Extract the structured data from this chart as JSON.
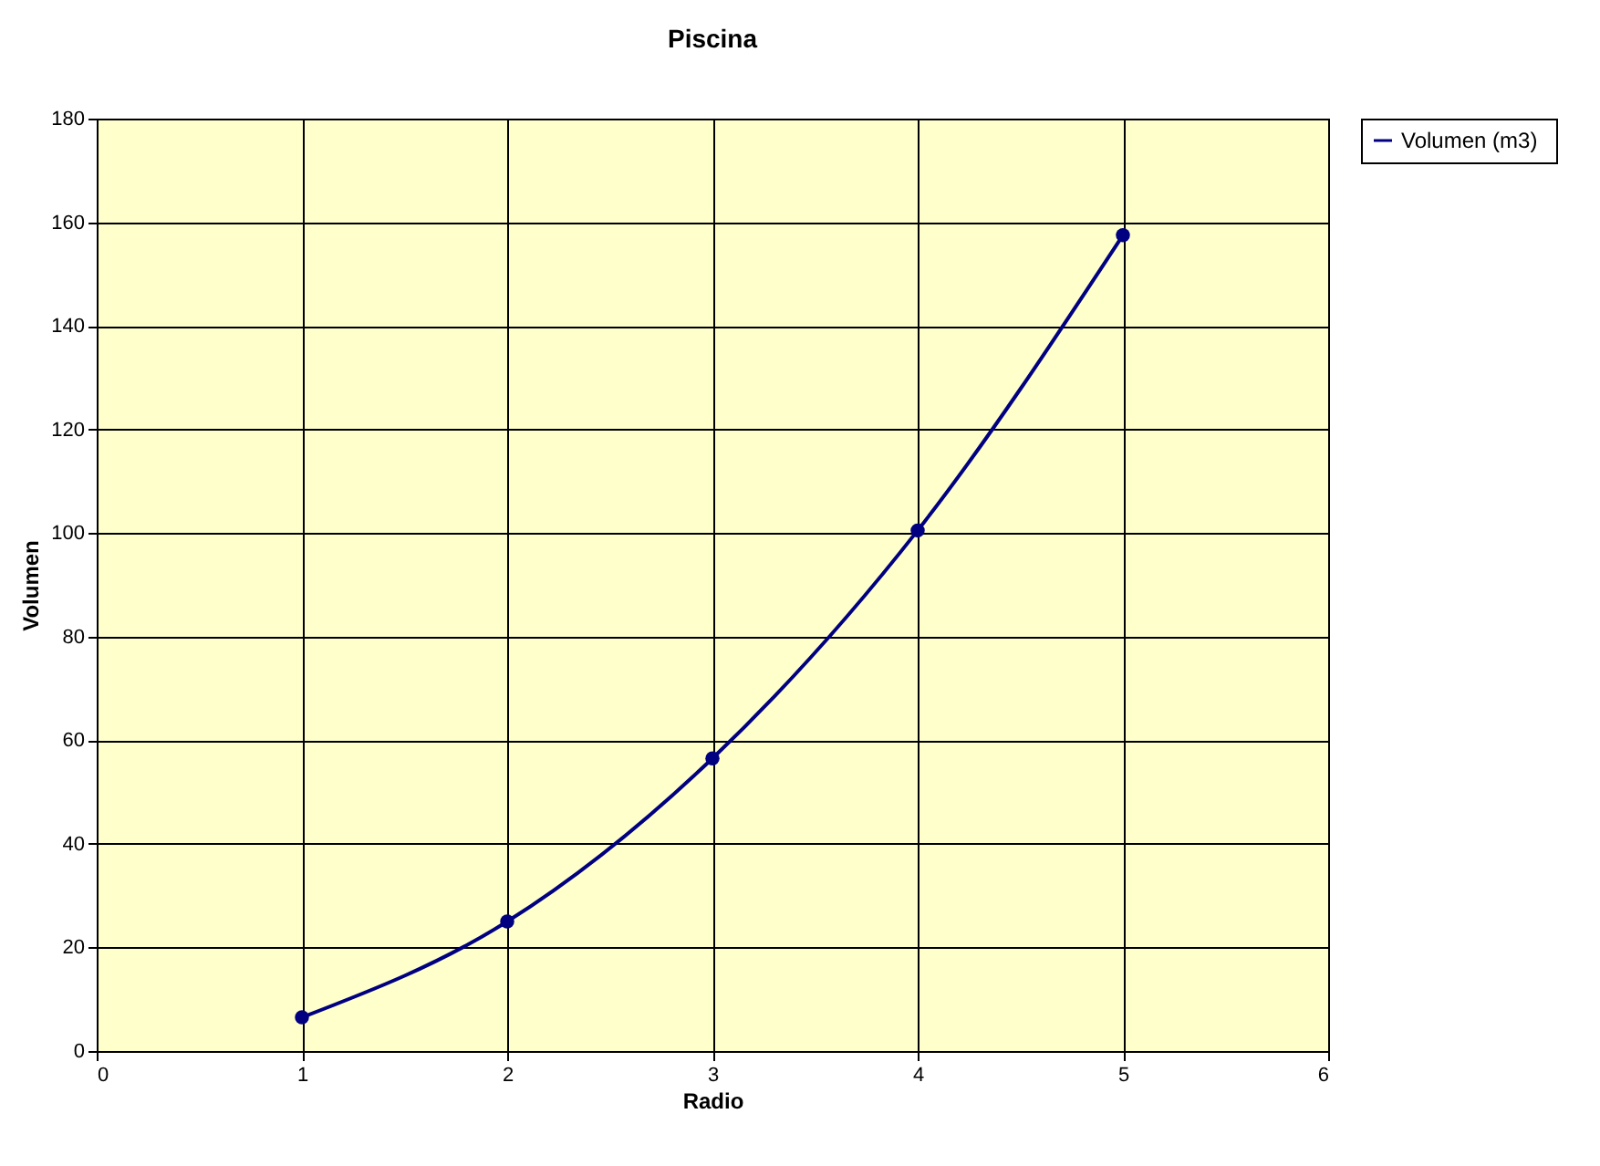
{
  "chart_data": {
    "type": "line",
    "title": "Piscina",
    "xlabel": "Radio",
    "ylabel": "Volumen",
    "x": [
      1,
      2,
      3,
      4,
      5
    ],
    "series": [
      {
        "name": "Volumen  (m3)",
        "color": "#000080",
        "values": [
          6.5,
          25,
          56.5,
          100.5,
          157.5
        ]
      }
    ],
    "xlim": [
      0,
      6
    ],
    "xticks": [
      0,
      1,
      2,
      3,
      4,
      5,
      6
    ],
    "ylim": [
      0,
      180
    ],
    "yticks": [
      0,
      20,
      40,
      60,
      80,
      100,
      120,
      140,
      160,
      180
    ],
    "grid": true,
    "legend": "right",
    "marker": "circle",
    "line_style": "solid"
  }
}
